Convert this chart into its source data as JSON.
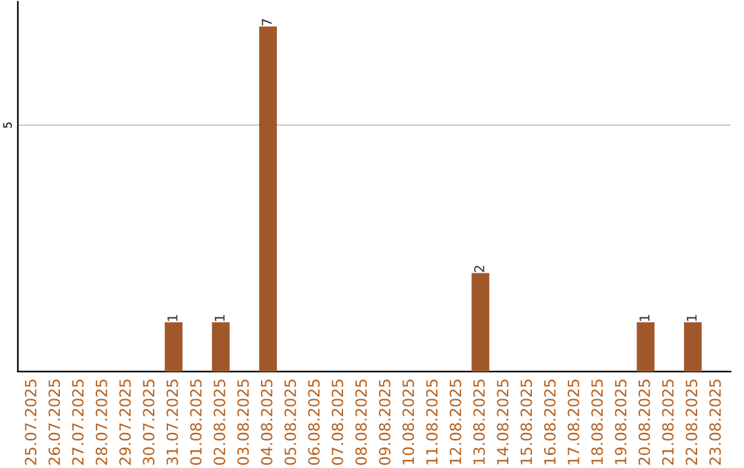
{
  "chart_data": {
    "type": "bar",
    "categories": [
      "25.07.2025",
      "26.07.2025",
      "27.07.2025",
      "28.07.2025",
      "29.07.2025",
      "30.07.2025",
      "31.07.2025",
      "01.08.2025",
      "02.08.2025",
      "03.08.2025",
      "04.08.2025",
      "05.08.2025",
      "06.08.2025",
      "07.08.2025",
      "08.08.2025",
      "09.08.2025",
      "10.08.2025",
      "11.08.2025",
      "12.08.2025",
      "13.08.2025",
      "14.08.2025",
      "15.08.2025",
      "16.08.2025",
      "17.08.2025",
      "18.08.2025",
      "19.08.2025",
      "20.08.2025",
      "21.08.2025",
      "22.08.2025",
      "23.08.2025"
    ],
    "values": [
      0,
      0,
      0,
      0,
      0,
      0,
      1,
      0,
      1,
      0,
      7,
      0,
      0,
      0,
      0,
      0,
      0,
      0,
      0,
      2,
      0,
      0,
      0,
      0,
      0,
      0,
      1,
      0,
      1,
      0
    ],
    "value_labels": [
      null,
      null,
      null,
      null,
      null,
      null,
      "1",
      null,
      "1",
      null,
      "7",
      null,
      null,
      null,
      null,
      null,
      null,
      null,
      null,
      "2",
      null,
      null,
      null,
      null,
      null,
      null,
      "1",
      null,
      "1",
      null
    ],
    "color": "#a0582a",
    "ylim": [
      0,
      7.5
    ],
    "yticks": [
      5
    ],
    "grid": "y"
  }
}
